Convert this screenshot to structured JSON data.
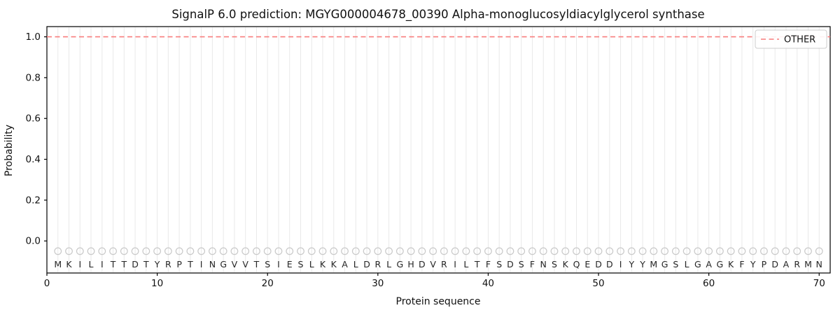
{
  "chart_data": {
    "type": "line",
    "title": "SignalP 6.0 prediction: MGYG000004678_00390 Alpha-monoglucosyldiacylglycerol synthase",
    "xlabel": "Protein sequence",
    "ylabel": "Probability",
    "xlim": [
      0,
      71
    ],
    "ylim": [
      -0.157,
      1.05
    ],
    "xticks": [
      0,
      10,
      20,
      30,
      40,
      50,
      60,
      70
    ],
    "yticks": [
      0.0,
      0.2,
      0.4,
      0.6,
      0.8,
      1.0
    ],
    "grid": {
      "vertical_per_residue": true,
      "color": "#e9e9e9"
    },
    "sequence": "MKILITTDTYRPTINGVVTSIESLKKALDRLGHDVRILTFSDSFNSKQEDDIYYMGSLGAGKFYPDARMN",
    "residue_markers": {
      "shape": "open-circle",
      "y": -0.05,
      "color": "#c9c9c9"
    },
    "series": [
      {
        "name": "OTHER",
        "kind": "hline",
        "y": 1.0,
        "x_start": 0,
        "x_end": 71,
        "color": "#f87c7c",
        "linestyle": "dashed"
      }
    ],
    "legend": {
      "position": "upper-right",
      "entries": [
        {
          "label": "OTHER",
          "color": "#f87c7c",
          "linestyle": "dashed"
        }
      ]
    },
    "frame_color": "#000000"
  }
}
